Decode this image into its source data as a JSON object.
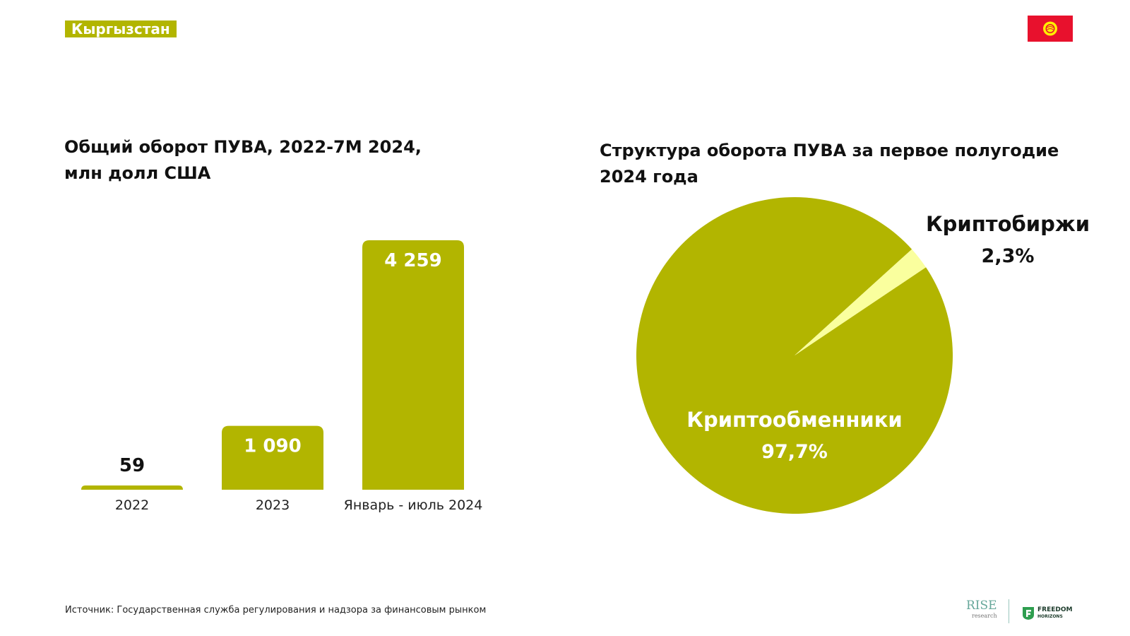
{
  "header": {
    "country": "Кыргызстан",
    "flag_icon": "kyrgyzstan-flag-icon"
  },
  "bar_title_lines": [
    "Общий оборот ПУВА, 2022-7М 2024,",
    "млн долл США"
  ],
  "pie_title_lines": [
    "Структура оборота ПУВА за первое полугодие",
    "2024 года"
  ],
  "footer": {
    "source": "Источник: Государственная служба регулирования и надзора за финансовым рынком",
    "logo_rise": "RISE",
    "logo_rise_sub": "research",
    "logo_freedom_line1": "FREEDOM",
    "logo_freedom_line2": "HORIZONS"
  },
  "colors": {
    "accent": "#b2b500",
    "accent_light": "#faff9e",
    "text": "#111111",
    "flag_red": "#e8112d",
    "flag_yellow": "#ffef00"
  },
  "chart_data": [
    {
      "type": "bar",
      "title": "Общий оборот ПУВА, 2022-7М 2024, млн долл США",
      "categories": [
        "2022",
        "2023",
        "Январь - июль 2024"
      ],
      "values": [
        59,
        1090,
        4259
      ],
      "value_labels": [
        "59",
        "1 090",
        "4 259"
      ],
      "xlabel": "",
      "ylabel": "",
      "ylim": [
        0,
        4259
      ],
      "grid": false,
      "legend": "none"
    },
    {
      "type": "pie",
      "title": "Структура оборота ПУВА за первое полугодие 2024 года",
      "slices": [
        {
          "label": "Криптообменники",
          "value": 97.7,
          "value_label": "97,7%",
          "color": "#b2b500"
        },
        {
          "label": "Криптобиржи",
          "value": 2.3,
          "value_label": "2,3%",
          "color": "#faff9e"
        }
      ],
      "legend": "none"
    }
  ]
}
